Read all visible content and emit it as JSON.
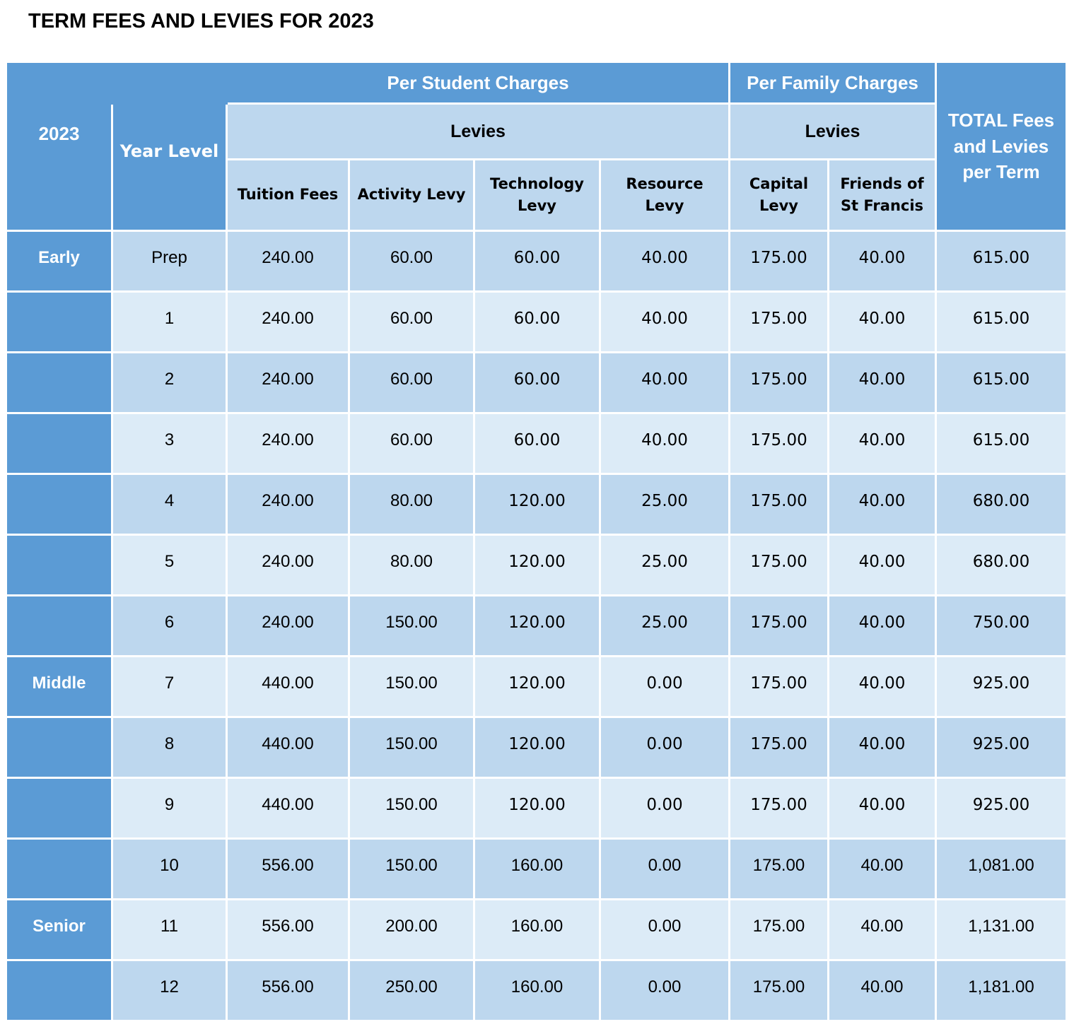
{
  "title": "TERM FEES AND LEVIES FOR 2023",
  "colors": {
    "header_blue": "#5b9bd5",
    "row_medium_blue": "#bdd7ee",
    "row_light_blue": "#dcebf7",
    "gridline": "#ffffff",
    "header_text": "#ffffff",
    "body_text": "#000000"
  },
  "table": {
    "header": {
      "year": "2023",
      "year_level": "Year Level",
      "per_student": "Per Student Charges",
      "per_family": "Per Family Charges",
      "levies_student": "Levies",
      "levies_family": "Levies",
      "columns": [
        "Tuition Fees",
        "Activity Levy",
        "Technology Levy",
        "Resource Levy",
        "Capital Levy",
        "Friends of St Francis"
      ],
      "total": "TOTAL Fees and Levies per Term"
    },
    "rows": [
      {
        "section": "Early",
        "level": "Prep",
        "tuition": "240.00",
        "activity": "60.00",
        "technology": "60.00",
        "resource": "40.00",
        "capital": "175.00",
        "friends": "40.00",
        "total": "615.00",
        "shade": "a",
        "num_font": "wide"
      },
      {
        "section": "",
        "level": "1",
        "tuition": "240.00",
        "activity": "60.00",
        "technology": "60.00",
        "resource": "40.00",
        "capital": "175.00",
        "friends": "40.00",
        "total": "615.00",
        "shade": "b",
        "num_font": "wide"
      },
      {
        "section": "",
        "level": "2",
        "tuition": "240.00",
        "activity": "60.00",
        "technology": "60.00",
        "resource": "40.00",
        "capital": "175.00",
        "friends": "40.00",
        "total": "615.00",
        "shade": "a",
        "num_font": "wide"
      },
      {
        "section": "",
        "level": "3",
        "tuition": "240.00",
        "activity": "60.00",
        "technology": "60.00",
        "resource": "40.00",
        "capital": "175.00",
        "friends": "40.00",
        "total": "615.00",
        "shade": "b",
        "num_font": "wide"
      },
      {
        "section": "",
        "level": "4",
        "tuition": "240.00",
        "activity": "80.00",
        "technology": "120.00",
        "resource": "25.00",
        "capital": "175.00",
        "friends": "40.00",
        "total": "680.00",
        "shade": "a",
        "num_font": "wide"
      },
      {
        "section": "",
        "level": "5",
        "tuition": "240.00",
        "activity": "80.00",
        "technology": "120.00",
        "resource": "25.00",
        "capital": "175.00",
        "friends": "40.00",
        "total": "680.00",
        "shade": "b",
        "num_font": "wide"
      },
      {
        "section": "",
        "level": "6",
        "tuition": "240.00",
        "activity": "150.00",
        "technology": "120.00",
        "resource": "25.00",
        "capital": "175.00",
        "friends": "40.00",
        "total": "750.00",
        "shade": "a",
        "num_font": "wide"
      },
      {
        "section": "Middle",
        "level": "7",
        "tuition": "440.00",
        "activity": "150.00",
        "technology": "120.00",
        "resource": "0.00",
        "capital": "175.00",
        "friends": "40.00",
        "total": "925.00",
        "shade": "b",
        "num_font": "wide"
      },
      {
        "section": "",
        "level": "8",
        "tuition": "440.00",
        "activity": "150.00",
        "technology": "120.00",
        "resource": "0.00",
        "capital": "175.00",
        "friends": "40.00",
        "total": "925.00",
        "shade": "a",
        "num_font": "wide"
      },
      {
        "section": "",
        "level": "9",
        "tuition": "440.00",
        "activity": "150.00",
        "technology": "120.00",
        "resource": "0.00",
        "capital": "175.00",
        "friends": "40.00",
        "total": "925.00",
        "shade": "b",
        "num_font": "wide"
      },
      {
        "section": "",
        "level": "10",
        "tuition": "556.00",
        "activity": "150.00",
        "technology": "160.00",
        "resource": "0.00",
        "capital": "175.00",
        "friends": "40.00",
        "total": "1,081.00",
        "shade": "a",
        "num_font": "narrow"
      },
      {
        "section": "Senior",
        "level": "11",
        "tuition": "556.00",
        "activity": "200.00",
        "technology": "160.00",
        "resource": "0.00",
        "capital": "175.00",
        "friends": "40.00",
        "total": "1,131.00",
        "shade": "b",
        "num_font": "narrow"
      },
      {
        "section": "",
        "level": "12",
        "tuition": "556.00",
        "activity": "250.00",
        "technology": "160.00",
        "resource": "0.00",
        "capital": "175.00",
        "friends": "40.00",
        "total": "1,181.00",
        "shade": "a",
        "num_font": "narrow"
      }
    ]
  }
}
